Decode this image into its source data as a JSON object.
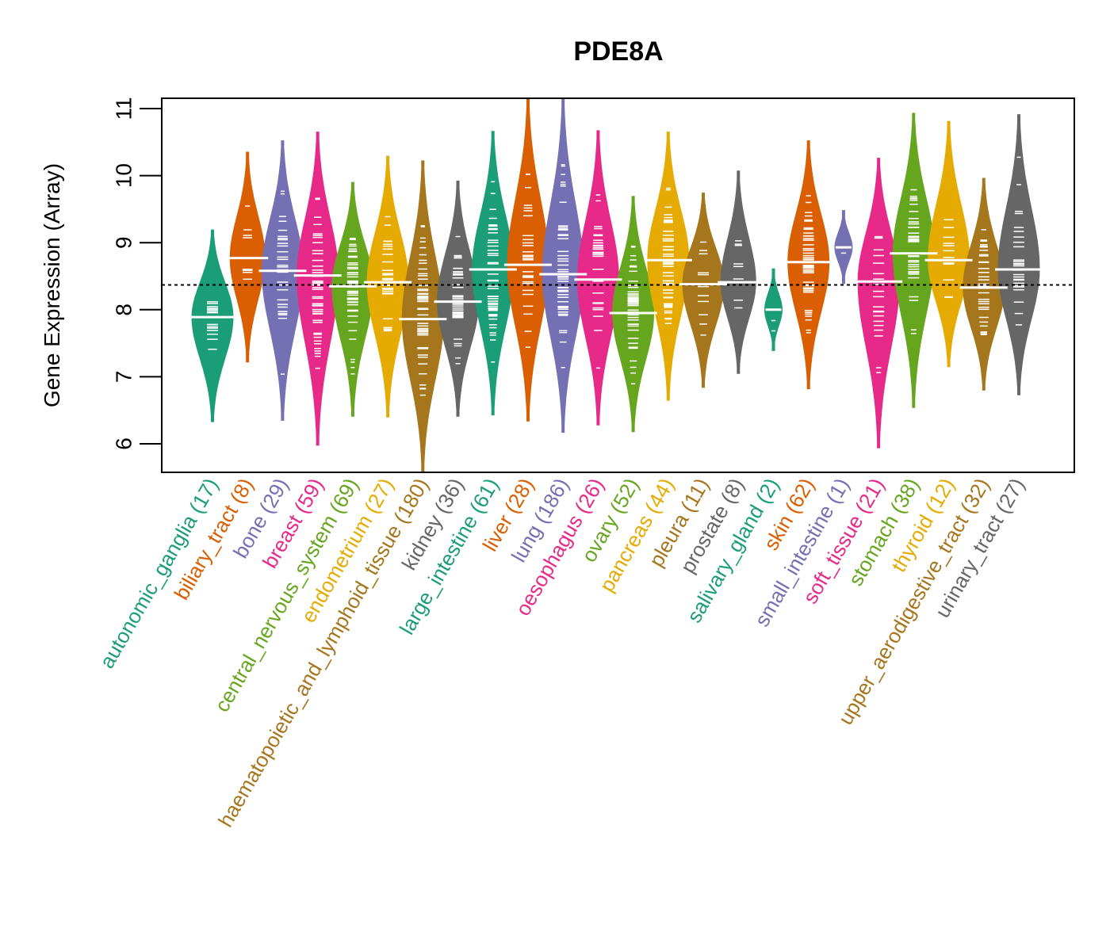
{
  "chart_data": {
    "type": "violin",
    "title": "PDE8A",
    "xlabel": "",
    "ylabel": "Gene Expression (Array)",
    "ylim": [
      5.6,
      11.15
    ],
    "yticks": [
      6,
      7,
      8,
      9,
      10,
      11
    ],
    "reference_line": 8.37,
    "grid": false,
    "legend": "none",
    "categories": [
      {
        "name": "autonomic_ganglia",
        "n": 17,
        "label": "autonomic_ganglia (17)",
        "color": "#1B9E77",
        "median": 7.89,
        "min": 6.33,
        "max": 9.19
      },
      {
        "name": "biliary_tract",
        "n": 8,
        "label": "biliary_tract (8)",
        "color": "#D95F02",
        "median": 8.77,
        "min": 7.22,
        "max": 10.35
      },
      {
        "name": "bone",
        "n": 29,
        "label": "bone (29)",
        "color": "#7570B3",
        "median": 8.58,
        "min": 6.35,
        "max": 10.52
      },
      {
        "name": "breast",
        "n": 59,
        "label": "breast (59)",
        "color": "#E7298A",
        "median": 8.51,
        "min": 5.98,
        "max": 10.65
      },
      {
        "name": "central_nervous_system",
        "n": 69,
        "label": "central_nervous_system (69)",
        "color": "#66A61E",
        "median": 8.35,
        "min": 6.41,
        "max": 9.9
      },
      {
        "name": "endometrium",
        "n": 27,
        "label": "endometrium (27)",
        "color": "#E6AB02",
        "median": 8.41,
        "min": 6.4,
        "max": 10.29
      },
      {
        "name": "haematopoietic_and_lymphoid_tissue",
        "n": 180,
        "label": "haematopoietic_and_lymphoid_tissue (180)",
        "color": "#A6761D",
        "median": 7.86,
        "min": 5.59,
        "max": 10.22
      },
      {
        "name": "kidney",
        "n": 36,
        "label": "kidney (36)",
        "color": "#666666",
        "median": 8.12,
        "min": 6.41,
        "max": 9.92
      },
      {
        "name": "large_intestine",
        "n": 61,
        "label": "large_intestine (61)",
        "color": "#1B9E77",
        "median": 8.6,
        "min": 6.43,
        "max": 10.66
      },
      {
        "name": "liver",
        "n": 28,
        "label": "liver (28)",
        "color": "#D95F02",
        "median": 8.67,
        "min": 6.34,
        "max": 11.15
      },
      {
        "name": "lung",
        "n": 186,
        "label": "lung (186)",
        "color": "#7570B3",
        "median": 8.53,
        "min": 6.17,
        "max": 11.15
      },
      {
        "name": "oesophagus",
        "n": 26,
        "label": "oesophagus (26)",
        "color": "#E7298A",
        "median": 8.45,
        "min": 6.28,
        "max": 10.67
      },
      {
        "name": "ovary",
        "n": 52,
        "label": "ovary (52)",
        "color": "#66A61E",
        "median": 7.95,
        "min": 6.18,
        "max": 9.69
      },
      {
        "name": "pancreas",
        "n": 44,
        "label": "pancreas (44)",
        "color": "#E6AB02",
        "median": 8.74,
        "min": 6.65,
        "max": 10.65
      },
      {
        "name": "pleura",
        "n": 11,
        "label": "pleura (11)",
        "color": "#A6761D",
        "median": 8.38,
        "min": 6.84,
        "max": 9.74
      },
      {
        "name": "prostate",
        "n": 8,
        "label": "prostate (8)",
        "color": "#666666",
        "median": 8.41,
        "min": 7.05,
        "max": 10.07
      },
      {
        "name": "salivary_gland",
        "n": 2,
        "label": "salivary_gland (2)",
        "color": "#1B9E77",
        "median": 8.0,
        "min": 7.39,
        "max": 8.61
      },
      {
        "name": "skin",
        "n": 62,
        "label": "skin (62)",
        "color": "#D95F02",
        "median": 8.71,
        "min": 6.82,
        "max": 10.52
      },
      {
        "name": "small_intestine",
        "n": 1,
        "label": "small_intestine (1)",
        "color": "#7570B3",
        "median": 8.93,
        "min": 8.39,
        "max": 9.48
      },
      {
        "name": "soft_tissue",
        "n": 21,
        "label": "soft_tissue (21)",
        "color": "#E7298A",
        "median": 8.42,
        "min": 5.94,
        "max": 10.26
      },
      {
        "name": "stomach",
        "n": 38,
        "label": "stomach (38)",
        "color": "#66A61E",
        "median": 8.84,
        "min": 6.54,
        "max": 10.93
      },
      {
        "name": "thyroid",
        "n": 12,
        "label": "thyroid (12)",
        "color": "#E6AB02",
        "median": 8.74,
        "min": 7.15,
        "max": 10.81
      },
      {
        "name": "upper_aerodigestive_tract",
        "n": 32,
        "label": "upper_aerodigestive_tract (32)",
        "color": "#A6761D",
        "median": 8.33,
        "min": 6.8,
        "max": 9.96
      },
      {
        "name": "urinary_tract",
        "n": 27,
        "label": "urinary_tract (27)",
        "color": "#666666",
        "median": 8.6,
        "min": 6.73,
        "max": 10.91
      }
    ]
  }
}
